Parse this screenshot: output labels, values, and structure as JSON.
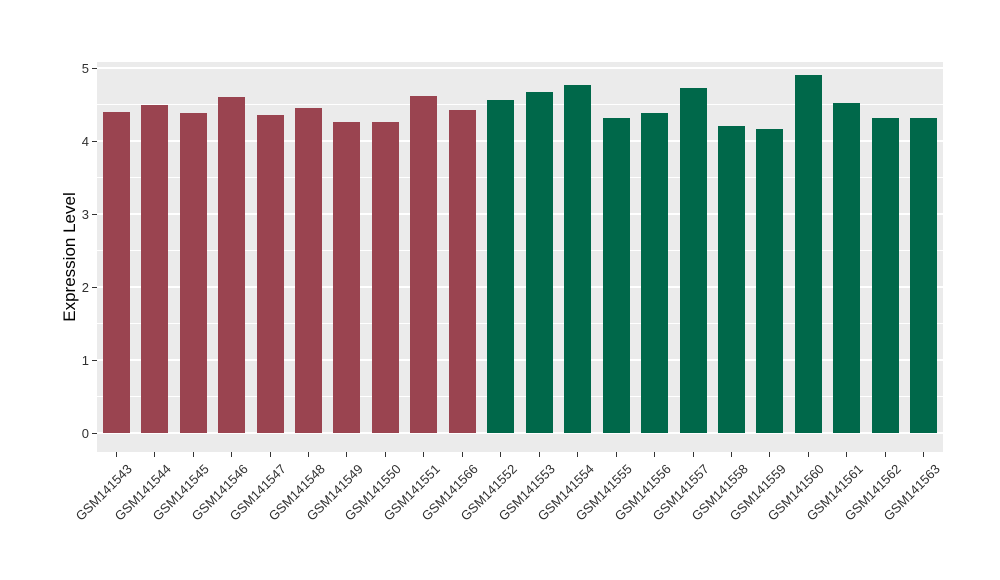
{
  "figure": {
    "background": "#FFFFFF",
    "panel_background": "#EBEBEB",
    "grid_color": "#FFFFFF",
    "axis_text_color": "#303030",
    "group_colors": {
      "left_group": "#9A4450",
      "right_group": "#00684A"
    }
  },
  "chart_data": {
    "type": "bar",
    "title": "",
    "xlabel": "",
    "ylabel": "Expression Level",
    "ylim": [
      0,
      5
    ],
    "yticks": [
      0,
      1,
      2,
      3,
      4,
      5
    ],
    "grid": "white major and minor horizontal lines on grey panel",
    "legend_position": "none",
    "categories": [
      "GSM141543",
      "GSM141544",
      "GSM141545",
      "GSM141546",
      "GSM141547",
      "GSM141548",
      "GSM141549",
      "GSM141550",
      "GSM141551",
      "GSM141566",
      "GSM141552",
      "GSM141553",
      "GSM141554",
      "GSM141555",
      "GSM141556",
      "GSM141557",
      "GSM141558",
      "GSM141559",
      "GSM141560",
      "GSM141561",
      "GSM141562",
      "GSM141563"
    ],
    "values": [
      4.4,
      4.49,
      4.39,
      4.6,
      4.36,
      4.45,
      4.26,
      4.26,
      4.62,
      4.42,
      4.56,
      4.67,
      4.77,
      4.31,
      4.39,
      4.72,
      4.21,
      4.17,
      4.9,
      4.52,
      4.31,
      4.32
    ],
    "bar_colors": [
      "#9A4450",
      "#9A4450",
      "#9A4450",
      "#9A4450",
      "#9A4450",
      "#9A4450",
      "#9A4450",
      "#9A4450",
      "#9A4450",
      "#9A4450",
      "#00684A",
      "#00684A",
      "#00684A",
      "#00684A",
      "#00684A",
      "#00684A",
      "#00684A",
      "#00684A",
      "#00684A",
      "#00684A",
      "#00684A",
      "#00684A"
    ]
  }
}
